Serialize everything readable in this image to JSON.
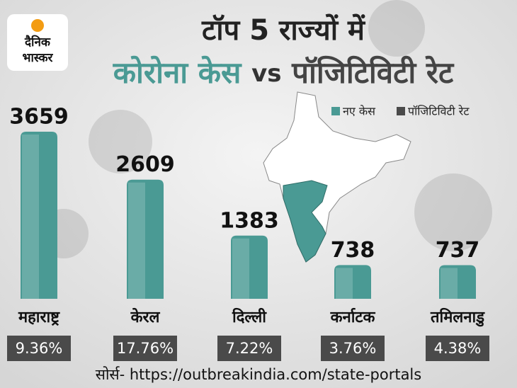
{
  "logo": {
    "lines": [
      "दैनिक",
      "भास्कर"
    ]
  },
  "chart_data": {
    "type": "bar",
    "title": "टॉप 5 राज्यों में",
    "subtitle_parts": [
      "कोरोना केस",
      "vs",
      "पॉजिटिविटी रेट"
    ],
    "categories": [
      "महाराष्ट्र",
      "केरल",
      "दिल्ली",
      "कर्नाटक",
      "तमिलनाडु"
    ],
    "series": [
      {
        "name": "नए केस",
        "color": "#4a9a94",
        "values": [
          3659,
          2609,
          1383,
          738,
          737
        ]
      },
      {
        "name": "पॉजिटिविटी रेट",
        "color": "#4a4a4a",
        "values": [
          9.36,
          17.76,
          7.22,
          3.76,
          4.38
        ],
        "value_labels": [
          "9.36%",
          "17.76%",
          "7.22%",
          "3.76%",
          "4.38%"
        ]
      }
    ],
    "source": "सोर्स- https://outbreakindia.com/state-portals"
  }
}
